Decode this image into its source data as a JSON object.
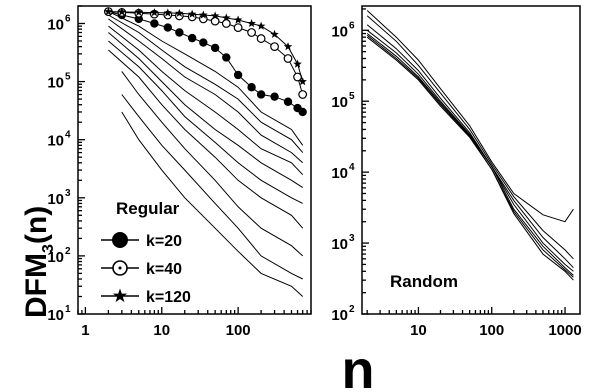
{
  "chart_data": [
    {
      "type": "line",
      "panel": "left",
      "xscale": "log",
      "yscale": "log",
      "xlim": [
        0.8,
        900
      ],
      "ylim": [
        10,
        2000000
      ],
      "x_ticks": [
        "1",
        "10",
        "100"
      ],
      "x_tick_values": [
        1,
        10,
        100
      ],
      "y_tick_exponents": [
        "1",
        "2",
        "3",
        "4",
        "5",
        "6"
      ],
      "y_tick_base": "10",
      "ylabel": "DFM",
      "ylabel_subscript": "3",
      "ylabel_suffix": "(n)",
      "xlabel": "n",
      "legend": {
        "title": "Regular",
        "entries": [
          {
            "label": "k=20",
            "marker": "filled-circle"
          },
          {
            "label": "k=40",
            "marker": "open-circle"
          },
          {
            "label": "k=120",
            "marker": "star"
          }
        ]
      },
      "marked_series": [
        {
          "name": "k=20",
          "marker": "filled-circle",
          "x": [
            2,
            3,
            5,
            8,
            12,
            17,
            25,
            35,
            50,
            70,
            100,
            150,
            200,
            300,
            450,
            600,
            700
          ],
          "y": [
            1600000,
            1400000,
            1200000,
            1000000,
            850000,
            700000,
            560000,
            470000,
            380000,
            260000,
            130000,
            80000,
            60000,
            55000,
            45000,
            35000,
            30000
          ]
        },
        {
          "name": "k=40",
          "marker": "open-circle",
          "x": [
            2,
            3,
            5,
            8,
            12,
            17,
            25,
            35,
            50,
            70,
            100,
            150,
            200,
            300,
            450,
            600,
            700
          ],
          "y": [
            1600000,
            1550000,
            1500000,
            1450000,
            1400000,
            1350000,
            1300000,
            1200000,
            1100000,
            1000000,
            850000,
            700000,
            550000,
            400000,
            250000,
            120000,
            60000
          ]
        },
        {
          "name": "k=120",
          "marker": "star",
          "x": [
            2,
            3,
            5,
            8,
            12,
            17,
            25,
            35,
            50,
            70,
            100,
            150,
            200,
            300,
            450,
            600,
            700
          ],
          "y": [
            1600000,
            1580000,
            1560000,
            1540000,
            1520000,
            1500000,
            1450000,
            1400000,
            1350000,
            1250000,
            1150000,
            1000000,
            900000,
            650000,
            400000,
            200000,
            100000
          ]
        }
      ],
      "plain_series": [
        {
          "x": [
            2,
            5,
            10,
            20,
            50,
            100,
            200,
            500,
            700
          ],
          "y": [
            1600000,
            900000,
            500000,
            300000,
            150000,
            80000,
            30000,
            15000,
            8000
          ]
        },
        {
          "x": [
            2,
            5,
            10,
            20,
            50,
            100,
            200,
            500,
            700
          ],
          "y": [
            1400000,
            700000,
            350000,
            180000,
            90000,
            50000,
            20000,
            10000,
            6000
          ]
        },
        {
          "x": [
            2,
            5,
            10,
            20,
            50,
            100,
            200,
            500,
            700
          ],
          "y": [
            1200000,
            500000,
            250000,
            120000,
            60000,
            30000,
            12000,
            6000,
            4000
          ]
        },
        {
          "x": [
            2,
            5,
            10,
            20,
            50,
            100,
            200,
            500,
            700
          ],
          "y": [
            900000,
            350000,
            150000,
            70000,
            30000,
            15000,
            7000,
            4000,
            2500
          ]
        },
        {
          "x": [
            2,
            5,
            10,
            20,
            50,
            100,
            200,
            500,
            700
          ],
          "y": [
            700000,
            250000,
            100000,
            40000,
            15000,
            8000,
            4000,
            2000,
            1500
          ]
        },
        {
          "x": [
            2,
            5,
            10,
            20,
            50,
            100,
            200,
            500,
            700
          ],
          "y": [
            500000,
            180000,
            70000,
            25000,
            9000,
            4000,
            2000,
            1000,
            800
          ]
        },
        {
          "x": [
            2,
            5,
            10,
            20,
            50,
            100,
            200,
            500,
            700
          ],
          "y": [
            350000,
            120000,
            40000,
            15000,
            5000,
            2000,
            1000,
            500,
            300
          ]
        },
        {
          "x": [
            3,
            5,
            10,
            20,
            50,
            100,
            200,
            500,
            700
          ],
          "y": [
            150000,
            60000,
            20000,
            7000,
            2000,
            700,
            300,
            150,
            100
          ]
        },
        {
          "x": [
            3,
            5,
            10,
            20,
            50,
            100,
            200,
            500,
            700
          ],
          "y": [
            60000,
            25000,
            8000,
            3000,
            800,
            300,
            100,
            50,
            40
          ]
        },
        {
          "x": [
            3,
            5,
            10,
            20,
            50,
            100,
            200,
            500,
            700
          ],
          "y": [
            30000,
            10000,
            3000,
            1000,
            300,
            120,
            50,
            30,
            20
          ]
        }
      ]
    },
    {
      "type": "line",
      "panel": "right",
      "xscale": "log",
      "yscale": "log",
      "xlim": [
        1.7,
        1600
      ],
      "ylim": [
        100,
        2200000
      ],
      "x_ticks": [
        "10",
        "100",
        "1000"
      ],
      "x_tick_values": [
        10,
        100,
        1000
      ],
      "y_tick_exponents": [
        "2",
        "3",
        "4",
        "5",
        "6"
      ],
      "y_tick_base": "10",
      "annotation": "Random",
      "plain_series": [
        {
          "x": [
            2,
            5,
            10,
            20,
            50,
            100,
            200,
            500,
            1000,
            1300
          ],
          "y": [
            1900000,
            800000,
            380000,
            150000,
            45000,
            14000,
            5000,
            2500,
            2000,
            3000
          ]
        },
        {
          "x": [
            2,
            5,
            10,
            20,
            50,
            100,
            200,
            500,
            1000,
            1300
          ],
          "y": [
            1600000,
            700000,
            320000,
            130000,
            40000,
            13000,
            4500,
            1500,
            800,
            600
          ]
        },
        {
          "x": [
            2,
            5,
            10,
            20,
            50,
            100,
            200,
            500,
            1000,
            1300
          ],
          "y": [
            1200000,
            550000,
            270000,
            110000,
            36000,
            12000,
            4000,
            1200,
            600,
            450
          ]
        },
        {
          "x": [
            2,
            5,
            10,
            20,
            50,
            100,
            200,
            500,
            1000,
            1300
          ],
          "y": [
            1000000,
            480000,
            240000,
            100000,
            34000,
            12000,
            3500,
            1000,
            500,
            400
          ]
        },
        {
          "x": [
            2,
            5,
            10,
            20,
            50,
            100,
            200,
            500,
            1000,
            1300
          ],
          "y": [
            900000,
            430000,
            220000,
            95000,
            33000,
            12000,
            3000,
            900,
            450,
            350
          ]
        },
        {
          "x": [
            2,
            5,
            10,
            20,
            50,
            100,
            200,
            500,
            1000,
            1300
          ],
          "y": [
            850000,
            400000,
            210000,
            90000,
            32000,
            11000,
            2800,
            800,
            420,
            330
          ]
        },
        {
          "x": [
            2,
            5,
            10,
            20,
            50,
            100,
            200,
            500,
            1000,
            1300
          ],
          "y": [
            800000,
            380000,
            200000,
            85000,
            31000,
            11000,
            2600,
            700,
            400,
            300
          ]
        }
      ]
    }
  ]
}
